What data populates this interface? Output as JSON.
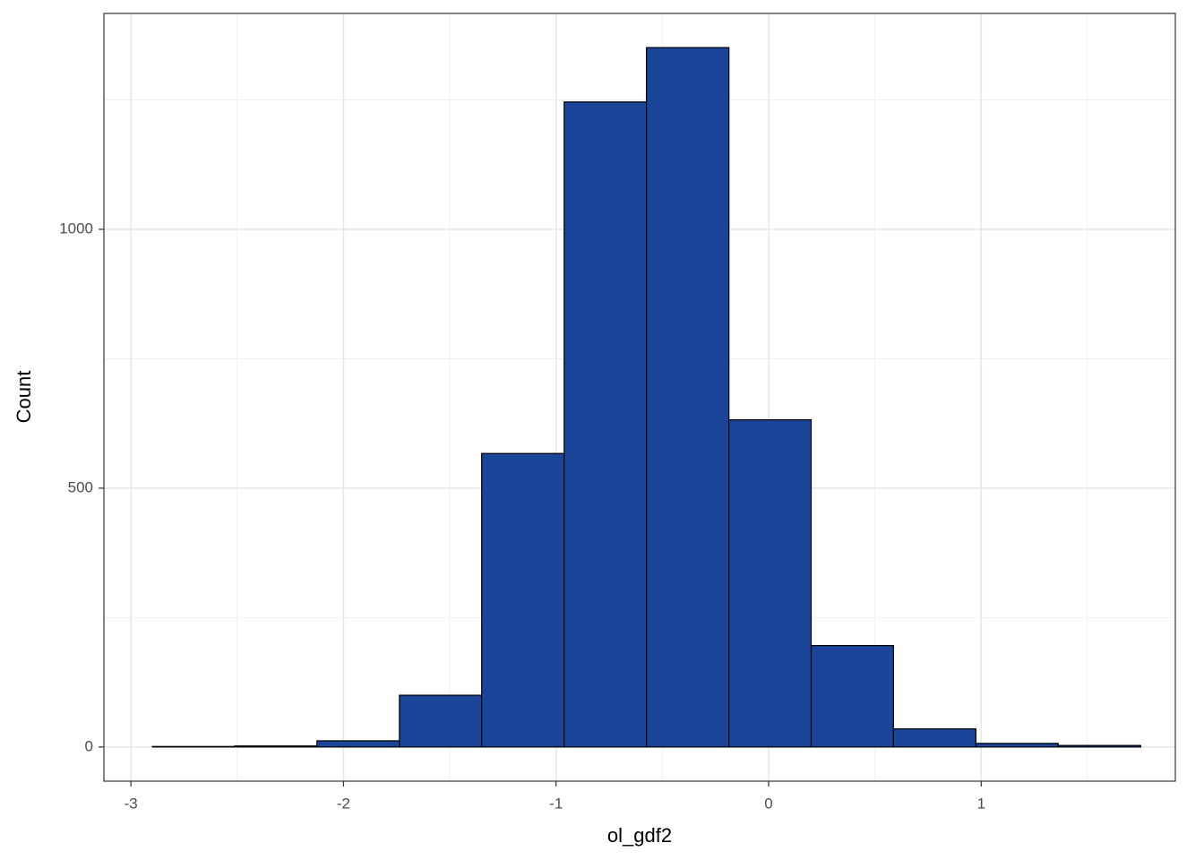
{
  "chart_data": {
    "type": "histogram",
    "x_label": "ol_gdf2",
    "y_label": "Count",
    "bins": [
      -2.899,
      -2.512,
      -2.125,
      -1.737,
      -1.35,
      -0.962,
      -0.575,
      -0.187,
      0.2,
      0.587,
      0.975,
      1.362,
      1.75
    ],
    "counts": [
      1,
      2,
      12,
      100,
      567,
      1246,
      1351,
      632,
      196,
      35,
      7,
      3
    ],
    "color": "#1a4599",
    "edge_color": "#000000",
    "xlim": [
      -3.127,
      1.913
    ],
    "ylim": [
      -66,
      1417
    ],
    "xticks": [
      -3,
      -2,
      -1,
      0,
      1
    ],
    "yticks": [
      0,
      500,
      1000
    ],
    "minor_xticks": [
      -2.5,
      -1.5,
      -0.5,
      0.5,
      1.5
    ],
    "minor_yticks": [
      250,
      750,
      1250
    ],
    "grid": true
  }
}
